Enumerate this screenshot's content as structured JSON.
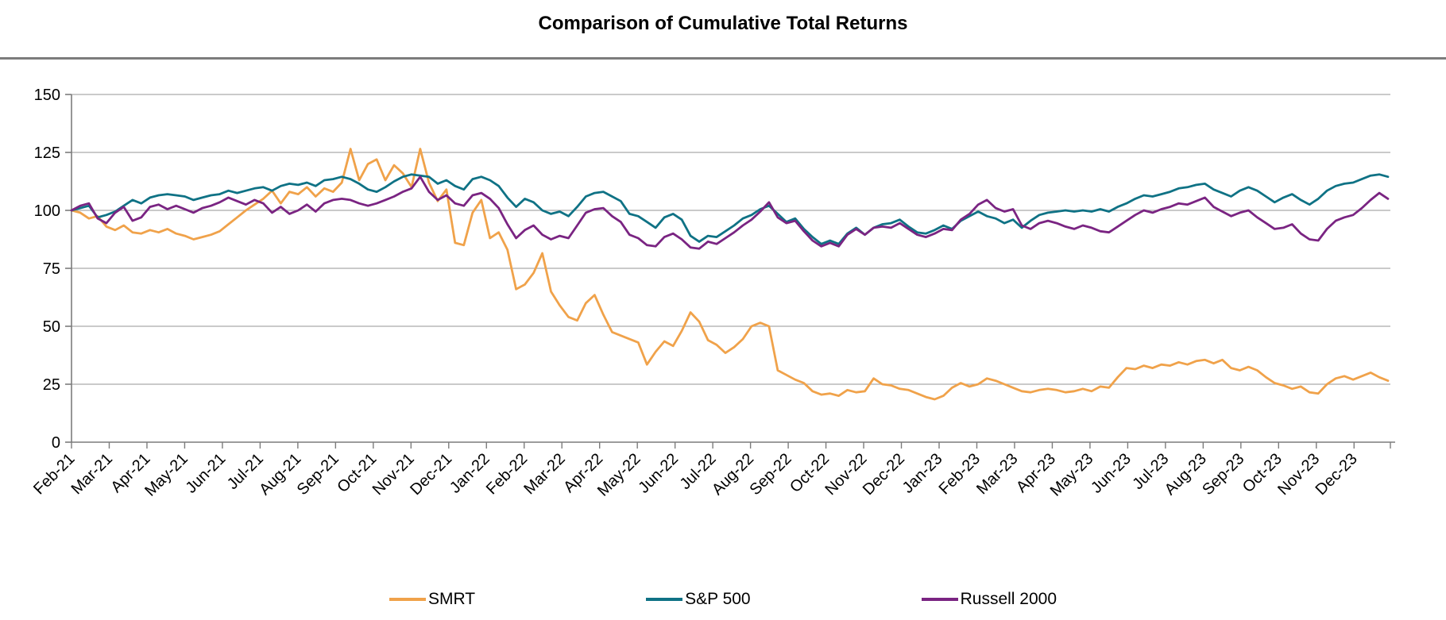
{
  "chart_data": {
    "type": "line",
    "title": "Comparison of Cumulative Total Returns",
    "xlabel": "",
    "ylabel": "",
    "ylim": [
      0,
      150
    ],
    "yticks": [
      0,
      25,
      50,
      75,
      100,
      125,
      150
    ],
    "grid": "horizontal",
    "legend_position": "bottom",
    "sampling": "weekly",
    "x_tick_labels": [
      "Feb-21",
      "Mar-21",
      "Apr-21",
      "May-21",
      "Jun-21",
      "Jul-21",
      "Aug-21",
      "Sep-21",
      "Oct-21",
      "Nov-21",
      "Dec-21",
      "Jan-22",
      "Feb-22",
      "Mar-22",
      "Apr-22",
      "May-22",
      "Jun-22",
      "Jul-22",
      "Aug-22",
      "Sep-22",
      "Oct-22",
      "Nov-22",
      "Dec-22",
      "Jan-23",
      "Feb-23",
      "Mar-23",
      "Apr-23",
      "May-23",
      "Jun-23",
      "Jul-23",
      "Aug-23",
      "Sep-23",
      "Oct-23",
      "Nov-23",
      "Dec-23"
    ],
    "series": [
      {
        "name": "SMRT",
        "color": "#F0A24A",
        "values": [
          100,
          99,
          96.5,
          97.5,
          93,
          91.5,
          93.5,
          90.5,
          90,
          91.5,
          90.5,
          92,
          90,
          89,
          87.5,
          88.5,
          89.5,
          91,
          94,
          97,
          100,
          102.5,
          105,
          108.5,
          103,
          108,
          107,
          110,
          106,
          109.5,
          108,
          112,
          126.5,
          113,
          120,
          122,
          113,
          119.5,
          116,
          110,
          126.5,
          112,
          104,
          109,
          86,
          85,
          99,
          104.5,
          88,
          90.5,
          83,
          66,
          68,
          73,
          81.5,
          65,
          59,
          54,
          52.5,
          60,
          63.5,
          55,
          47.5,
          46,
          44.5,
          43,
          33.5,
          39,
          43.5,
          41.5,
          48,
          56,
          52,
          44,
          42,
          38.5,
          41,
          44.5,
          50,
          51.5,
          50,
          31,
          29,
          27,
          25.5,
          22,
          20.5,
          21,
          20,
          22.5,
          21.5,
          22,
          27.5,
          25,
          24.5,
          23,
          22.5,
          21,
          19.5,
          18.5,
          20,
          23.5,
          25.5,
          24,
          25,
          27.5,
          26.5,
          25,
          23.5,
          22,
          21.5,
          22.5,
          23,
          22.5,
          21.5,
          22,
          23,
          22,
          24,
          23.5,
          28,
          32,
          31.5,
          33,
          32,
          33.5,
          33,
          34.5,
          33.5,
          35,
          35.5,
          34,
          35.5,
          32,
          31,
          32.5,
          31,
          28,
          25.5,
          24.5,
          23,
          24,
          21.5,
          21,
          25,
          27.5,
          28.5,
          27,
          28.5,
          30,
          28,
          26.5
        ]
      },
      {
        "name": "S&P 500",
        "color": "#0F7285",
        "values": [
          100,
          101,
          102,
          97,
          98,
          99.5,
          102,
          104.5,
          103,
          105.5,
          106.5,
          107,
          106.5,
          106,
          104.5,
          105.5,
          106.5,
          107,
          108.5,
          107.5,
          108.5,
          109.5,
          110,
          108.5,
          110.5,
          111.5,
          111,
          112,
          110.5,
          113,
          113.5,
          114.5,
          113.5,
          111.5,
          109,
          108,
          110,
          112.5,
          114.5,
          115.5,
          115,
          114.5,
          111.5,
          113,
          110.5,
          109,
          113.5,
          114.5,
          113,
          110.5,
          105.5,
          101.5,
          105,
          103.5,
          100,
          98.5,
          99.5,
          97.5,
          101.5,
          106,
          107.5,
          108,
          106,
          104,
          98.5,
          97.5,
          95,
          92.5,
          97,
          98.5,
          96,
          89,
          86.5,
          89,
          88.5,
          91,
          93.5,
          96.5,
          98,
          100.5,
          102,
          98.5,
          95,
          96.5,
          92,
          88.5,
          85.5,
          87,
          85.5,
          90,
          92.5,
          89.5,
          92.5,
          94,
          94.5,
          96,
          93,
          90.5,
          90,
          91.5,
          93.5,
          92,
          95.5,
          97.5,
          99.5,
          97.5,
          96.5,
          94.5,
          96,
          92.5,
          95.5,
          98,
          99,
          99.5,
          100,
          99.5,
          100,
          99.5,
          100.5,
          99.5,
          101.5,
          103,
          105,
          106.5,
          106,
          107,
          108,
          109.5,
          110,
          111,
          111.5,
          109,
          107.5,
          106,
          108.5,
          110,
          108.5,
          106,
          103.5,
          105.5,
          107,
          104.5,
          102.5,
          105,
          108.5,
          110.5,
          111.5,
          112,
          113.5,
          115,
          115.5,
          114.5
        ]
      },
      {
        "name": "Russell 2000",
        "color": "#7A2482",
        "values": [
          100,
          102,
          103,
          96.5,
          94.5,
          99,
          101.5,
          95.5,
          97,
          101.5,
          102.5,
          100.5,
          102,
          100.5,
          99,
          101,
          102,
          103.5,
          105.5,
          104,
          102.5,
          104.5,
          103,
          99,
          101.5,
          98.5,
          100,
          102.5,
          99.5,
          103,
          104.5,
          105,
          104.5,
          103,
          102,
          103,
          104.5,
          106,
          108,
          109.5,
          114.5,
          108,
          104.5,
          106.5,
          103,
          102,
          106.5,
          107.5,
          105,
          101,
          94,
          88,
          91.5,
          93.5,
          89.5,
          87.5,
          89,
          88,
          93.5,
          99,
          100.5,
          101,
          97.5,
          95,
          89.5,
          88,
          85,
          84.5,
          88.5,
          90,
          87.5,
          84,
          83.5,
          86.5,
          85.5,
          88,
          90.5,
          93.5,
          96,
          99.5,
          103.5,
          97,
          94.5,
          95.5,
          91,
          87,
          84.5,
          86,
          84.5,
          89.5,
          92,
          89.5,
          92.5,
          93,
          92.5,
          94.5,
          92,
          89.5,
          88.5,
          90,
          92,
          91.5,
          96,
          98.5,
          102.5,
          104.5,
          101,
          99.5,
          100.5,
          93.5,
          92,
          94.5,
          95.5,
          94.5,
          93,
          92,
          93.5,
          92.5,
          91,
          90.5,
          93,
          95.5,
          98,
          100,
          99,
          100.5,
          101.5,
          103,
          102.5,
          104,
          105.5,
          101.5,
          99.5,
          97.5,
          99,
          100,
          97,
          94.5,
          92,
          92.5,
          94,
          90,
          87.5,
          87,
          92,
          95.5,
          97,
          98,
          101,
          104.5,
          107.5,
          105
        ]
      }
    ],
    "colors": {
      "gridline": "#ABABAB",
      "axis": "#7C7C7C",
      "divider": "#7C7C7C",
      "text": "#000000"
    }
  }
}
